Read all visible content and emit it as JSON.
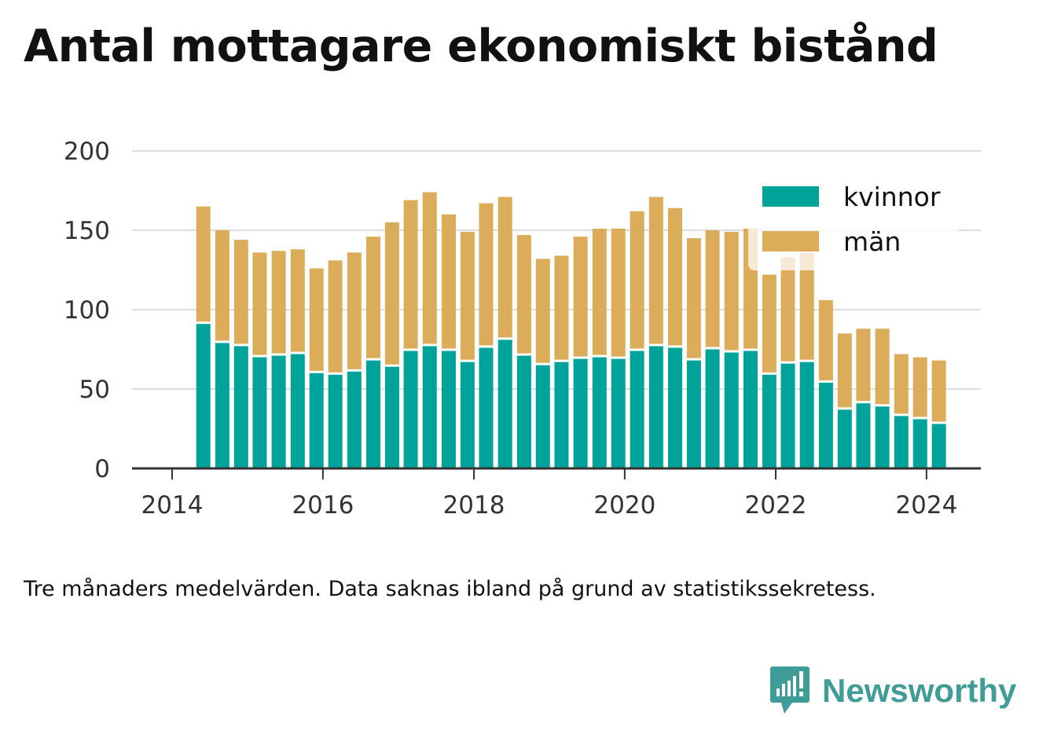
{
  "title": "Antal mottagare ekonomiskt bistånd",
  "footnote": "Tre månaders medelvärden. Data saknas ibland på grund av statistikssekretess.",
  "brand": {
    "name": "Newsworthy",
    "icon": "newsworthy-logo-icon",
    "color": "#3f9c97"
  },
  "chart_data": {
    "type": "bar",
    "stacked": true,
    "title": "",
    "xlabel": "",
    "ylabel": "",
    "ylim": [
      0,
      200
    ],
    "yticks": [
      0,
      50,
      100,
      150,
      200
    ],
    "xticks": [
      2014,
      2016,
      2018,
      2020,
      2022,
      2024
    ],
    "xtick_labels": [
      "2014",
      "2016",
      "2018",
      "2020",
      "2022",
      "2024"
    ],
    "grid": true,
    "legend": "top-right",
    "x": [
      "2014-06",
      "2014-09",
      "2014-12",
      "2015-03",
      "2015-06",
      "2015-09",
      "2015-12",
      "2016-03",
      "2016-06",
      "2016-09",
      "2016-12",
      "2017-03",
      "2017-06",
      "2017-09",
      "2017-12",
      "2018-03",
      "2018-06",
      "2018-09",
      "2018-12",
      "2019-03",
      "2019-06",
      "2019-09",
      "2019-12",
      "2020-03",
      "2020-06",
      "2020-09",
      "2020-12",
      "2021-03",
      "2021-06",
      "2021-09",
      "2021-12",
      "2022-03",
      "2022-06",
      "2022-09",
      "2022-12",
      "2023-03",
      "2023-06",
      "2023-09",
      "2023-12",
      "2024-03"
    ],
    "series": [
      {
        "name": "kvinnor",
        "color": "#00a39a",
        "values": [
          91,
          79,
          77,
          70,
          71,
          72,
          60,
          59,
          61,
          68,
          64,
          74,
          77,
          74,
          67,
          76,
          81,
          71,
          65,
          67,
          69,
          70,
          69,
          74,
          77,
          76,
          68,
          75,
          73,
          74,
          59,
          66,
          67,
          54,
          37,
          41,
          39,
          33,
          31,
          28
        ]
      },
      {
        "name": "män",
        "color": "#dbad5b",
        "values": [
          74,
          71,
          67,
          66,
          66,
          66,
          66,
          72,
          75,
          78,
          91,
          95,
          97,
          86,
          82,
          91,
          90,
          76,
          67,
          67,
          77,
          81,
          82,
          88,
          94,
          88,
          77,
          75,
          76,
          77,
          63,
          67,
          69,
          52,
          48,
          47,
          49,
          39,
          39,
          40
        ]
      }
    ]
  }
}
